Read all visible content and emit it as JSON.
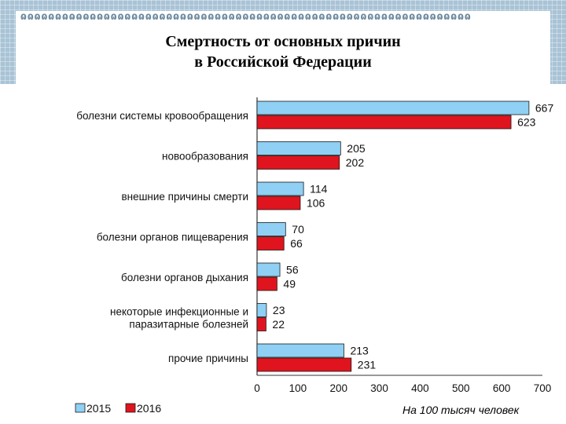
{
  "header": {
    "title_line1": "Смертность от основных причин",
    "title_line2": "в Российской Федерации"
  },
  "footnote": "На 100 тысяч человек",
  "colors": {
    "series_2015": "#8fd0f4",
    "series_2016": "#e0141e",
    "bar_border": "#1a1a1a"
  },
  "chart_data": {
    "type": "bar",
    "orientation": "horizontal",
    "categories": [
      [
        "болезни системы кровообращения"
      ],
      [
        "новообразования"
      ],
      [
        "внешние причины смерти"
      ],
      [
        "болезни органов пищеварения"
      ],
      [
        "болезни органов дыхания"
      ],
      [
        "некоторые инфекционные и",
        "паразитарные болезней"
      ],
      [
        "прочие причины"
      ]
    ],
    "series": [
      {
        "name": "2015",
        "values": [
          667,
          205,
          114,
          70,
          56,
          23,
          213
        ]
      },
      {
        "name": "2016",
        "values": [
          623,
          202,
          106,
          66,
          49,
          22,
          231
        ]
      }
    ],
    "xlim": [
      0,
      700
    ],
    "xticks": [
      0,
      100,
      200,
      300,
      400,
      500,
      600,
      700
    ],
    "legend": "bottom-left",
    "grid": false
  }
}
